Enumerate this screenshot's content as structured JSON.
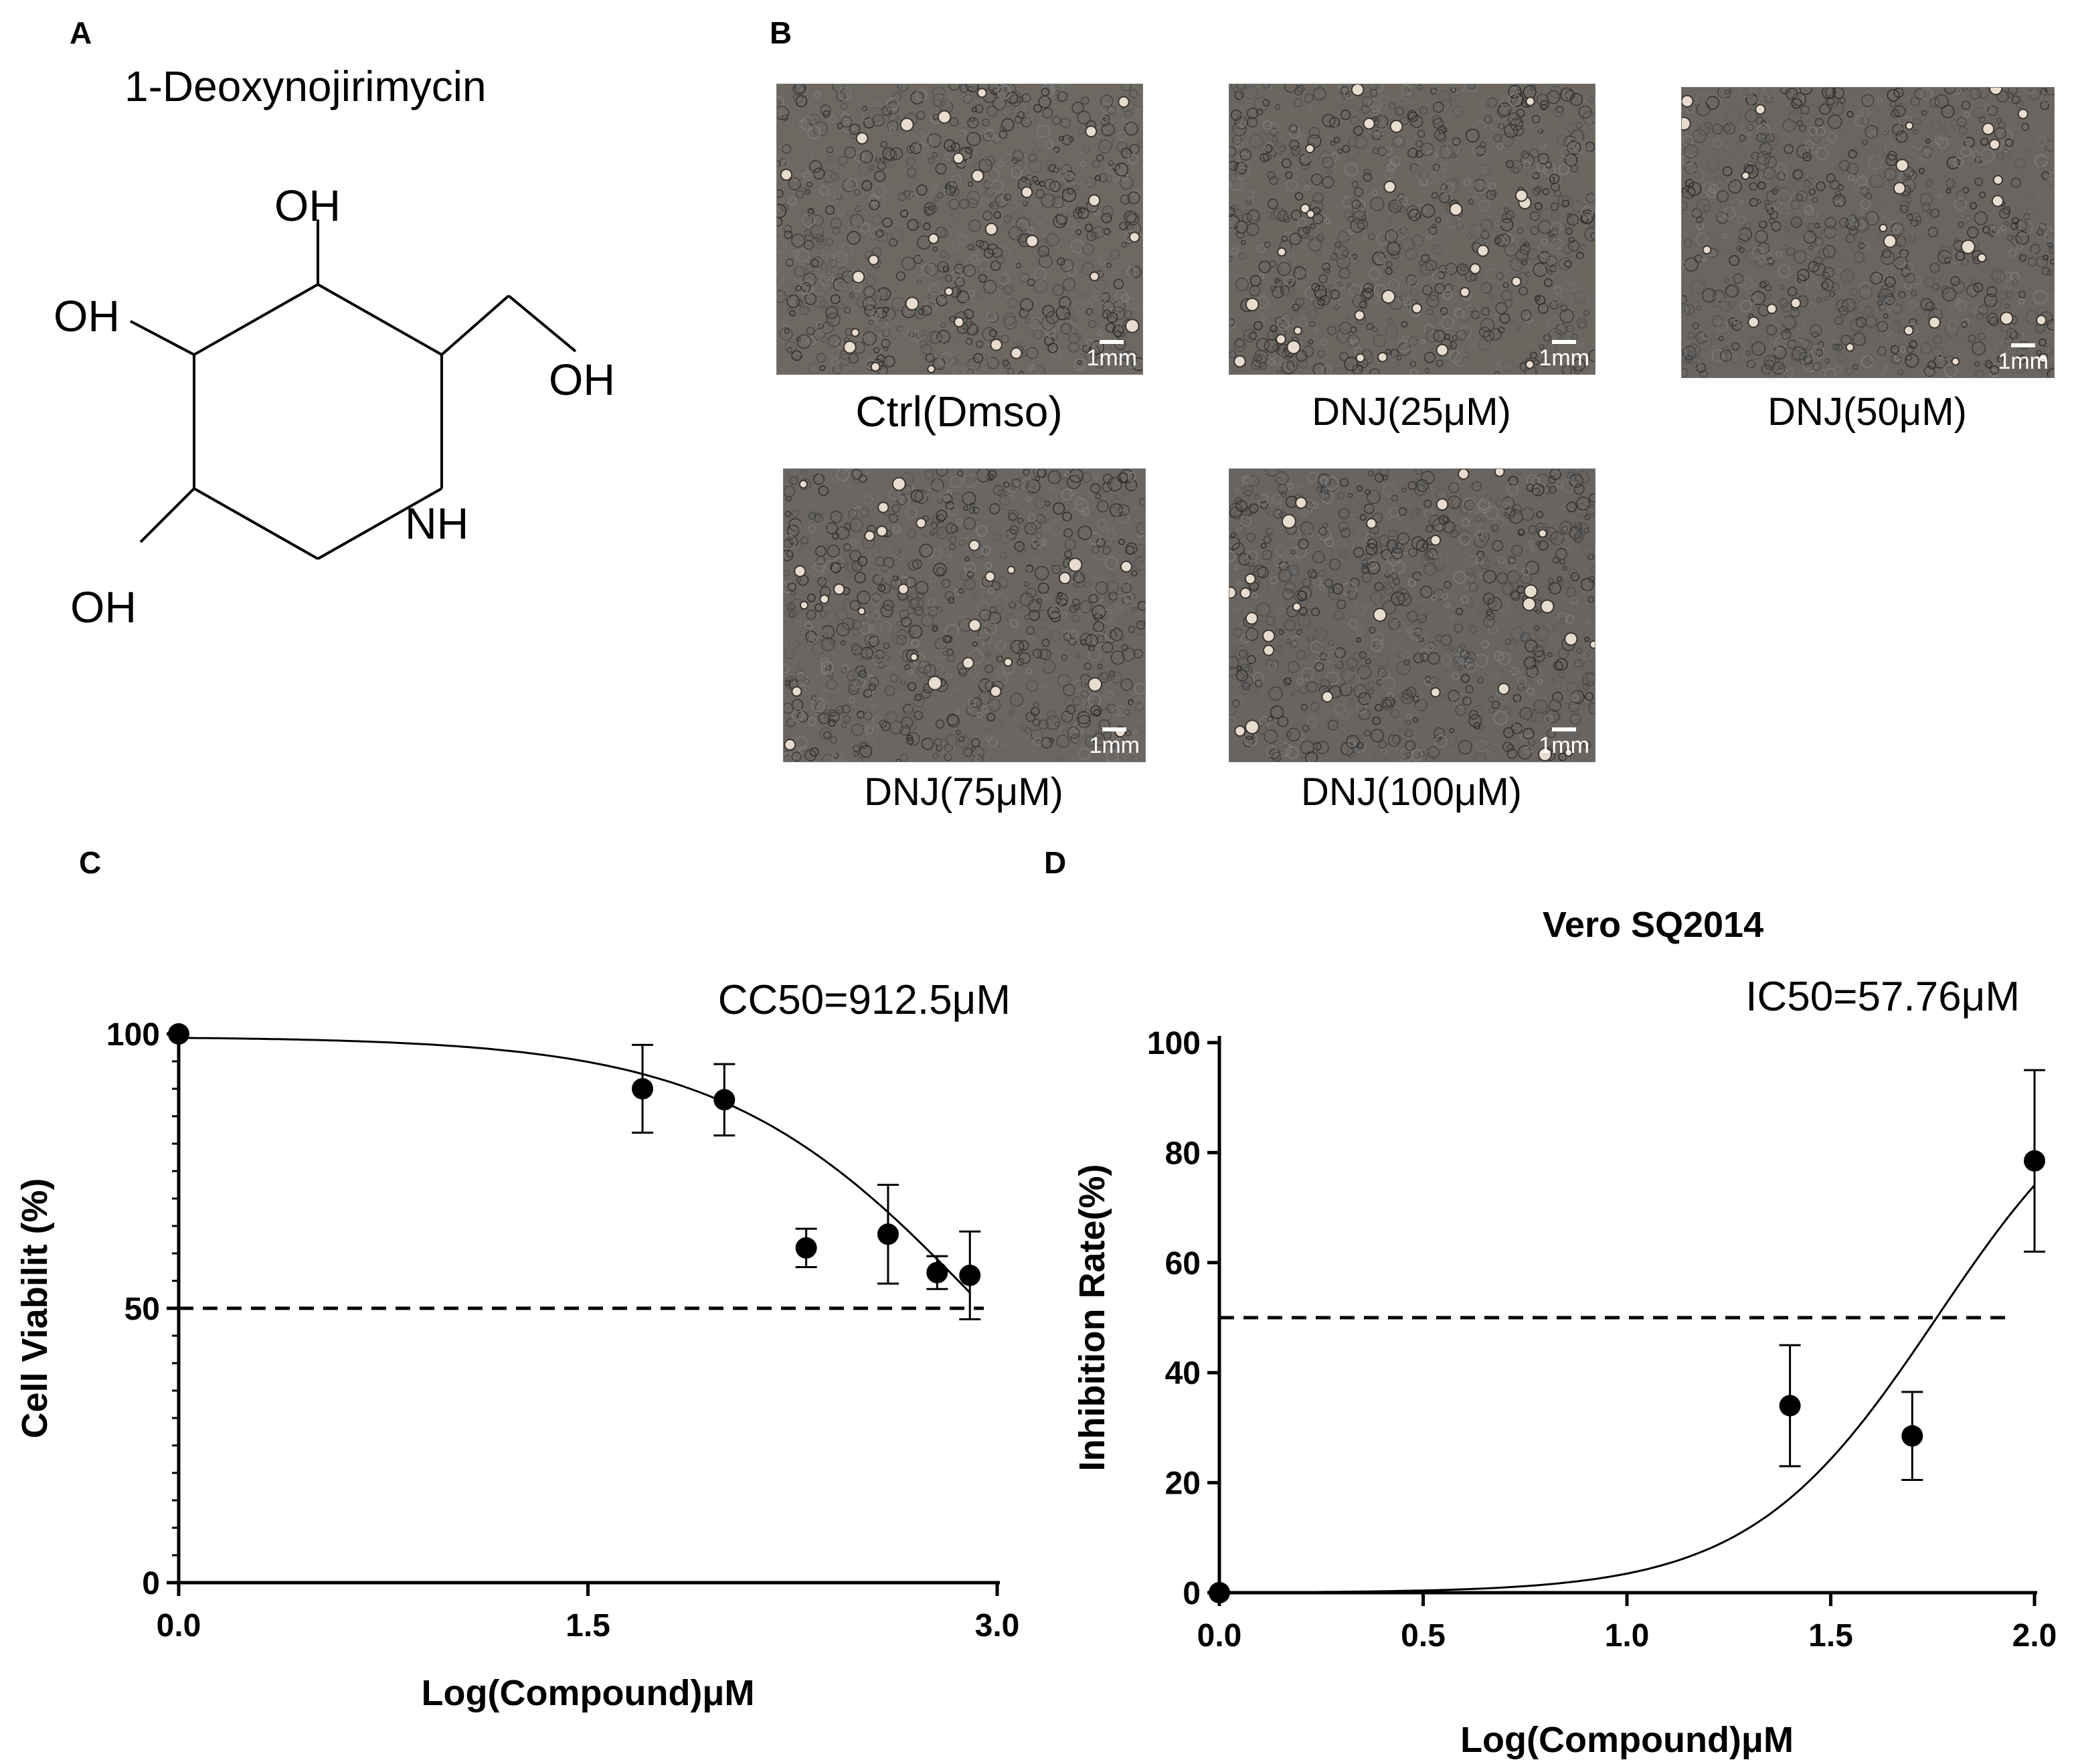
{
  "panels": {
    "A": {
      "letter": "A",
      "title": "1-Deoxynojirimycin",
      "labels": {
        "oh_top": "OH",
        "oh_left": "OH",
        "oh_right": "OH",
        "oh_bottom": "OH",
        "nh": "NH"
      }
    },
    "B": {
      "letter": "B",
      "images": [
        {
          "caption": "Ctrl(Dmso)",
          "scale": "1mm"
        },
        {
          "caption": "DNJ(25μM)",
          "scale": "1mm"
        },
        {
          "caption": "DNJ(50μM)",
          "scale": "1mm"
        },
        {
          "caption": "DNJ(75μM)",
          "scale": "1mm"
        },
        {
          "caption": "DNJ(100μM)",
          "scale": "1mm"
        }
      ]
    },
    "C": {
      "letter": "C"
    },
    "D": {
      "letter": "D"
    }
  },
  "chart_data": [
    {
      "type": "scatter",
      "panel": "C",
      "title": "",
      "annotation": "CC50=912.5μM",
      "xlabel": "Log(Compound)μM",
      "ylabel": "Cell Viabilit (%)",
      "xlim": [
        0,
        3.0
      ],
      "ylim": [
        0,
        100
      ],
      "xticks": [
        "0.0",
        "1.5",
        "3.0"
      ],
      "yticks": [
        "0",
        "50",
        "100"
      ],
      "points": [
        {
          "x": 0.0,
          "y": 100,
          "err": 0
        },
        {
          "x": 1.7,
          "y": 90,
          "err": 8
        },
        {
          "x": 2.0,
          "y": 88,
          "err": 6.5
        },
        {
          "x": 2.3,
          "y": 61,
          "err": 3.5
        },
        {
          "x": 2.6,
          "y": 63.5,
          "err": 9
        },
        {
          "x": 2.78,
          "y": 56.5,
          "err": 3
        },
        {
          "x": 2.9,
          "y": 56,
          "err": 8
        }
      ],
      "fit": {
        "top": 99.5,
        "bottom": 0,
        "logEC50": 2.96,
        "hill": 0.9,
        "xrange": [
          0,
          2.9
        ]
      },
      "reference_line": 50
    },
    {
      "type": "scatter",
      "panel": "D",
      "title": "Vero SQ2014",
      "annotation": "IC50=57.76μM",
      "xlabel": "Log(Compound)μM",
      "ylabel": "Inhibition Rate(%)",
      "xlim": [
        0,
        2.0
      ],
      "ylim": [
        0,
        100
      ],
      "xticks": [
        "0.0",
        "0.5",
        "1.0",
        "1.5",
        "2.0"
      ],
      "yticks": [
        "0",
        "20",
        "40",
        "60",
        "80",
        "100"
      ],
      "points": [
        {
          "x": 0.0,
          "y": 0,
          "err": 0
        },
        {
          "x": 1.4,
          "y": 34,
          "err": 11
        },
        {
          "x": 1.7,
          "y": 28.5,
          "err": 8
        },
        {
          "x": 2.0,
          "y": 78.5,
          "err": 16.5
        }
      ],
      "fit": {
        "top": 100,
        "bottom": 0,
        "logEC50": 1.76,
        "hill": 1.9,
        "xrange": [
          0,
          2.0
        ]
      },
      "reference_line": 50
    }
  ]
}
